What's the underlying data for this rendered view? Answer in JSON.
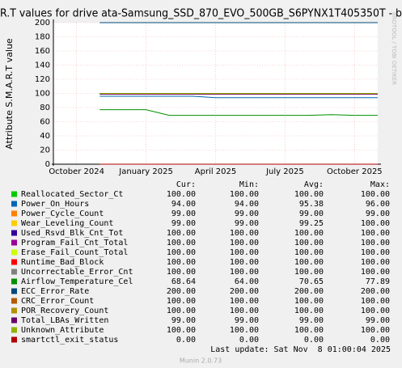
{
  "chart_data": {
    "type": "line",
    "title": "R.T values for drive ata-Samsung_SSD_870_EVO_500GB_S6PYNX1T405350T - b",
    "y_label": "Attribute S.M.A.R.T value",
    "watermark": "RRDTOOL / TOBI OETIKER",
    "x": [
      "2024-11",
      "2024-12",
      "2025-01",
      "2025-02",
      "2025-03",
      "2025-04",
      "2025-05",
      "2025-06",
      "2025-07",
      "2025-08",
      "2025-09",
      "2025-10",
      "2025-11"
    ],
    "xlim": [
      "2024-09",
      "2025-11"
    ],
    "xticks": [
      {
        "value": "2024-10",
        "label": "October 2024"
      },
      {
        "value": "2025-01",
        "label": "January 2025"
      },
      {
        "value": "2025-04",
        "label": "April 2025"
      },
      {
        "value": "2025-07",
        "label": "July 2025"
      },
      {
        "value": "2025-10",
        "label": "October 2025"
      }
    ],
    "ylim": [
      0,
      200
    ],
    "yticks": [
      0,
      20,
      40,
      60,
      80,
      100,
      120,
      140,
      160,
      180,
      200
    ],
    "grid": true,
    "series": [
      {
        "name": "Reallocated_Sector_Ct",
        "color": "#00cc00",
        "values": [
          100,
          100,
          100,
          100,
          100,
          100,
          100,
          100,
          100,
          100,
          100,
          100,
          100
        ]
      },
      {
        "name": "Power_On_Hours",
        "color": "#0066b3",
        "values": [
          96,
          96,
          96,
          96,
          96,
          94,
          94,
          94,
          94,
          94,
          94,
          94,
          94
        ]
      },
      {
        "name": "Power_Cycle_Count",
        "color": "#ff8000",
        "values": [
          99,
          99,
          99,
          99,
          99,
          99,
          99,
          99,
          99,
          99,
          99,
          99,
          99
        ]
      },
      {
        "name": "Wear_Leveling_Count",
        "color": "#ffcc00",
        "values": [
          100,
          100,
          100,
          99,
          99,
          99,
          99,
          99,
          99,
          99,
          99,
          99,
          99
        ]
      },
      {
        "name": "Used_Rsvd_Blk_Cnt_Tot",
        "color": "#330099",
        "values": [
          100,
          100,
          100,
          100,
          100,
          100,
          100,
          100,
          100,
          100,
          100,
          100,
          100
        ]
      },
      {
        "name": "Program_Fail_Cnt_Total",
        "color": "#990099",
        "values": [
          100,
          100,
          100,
          100,
          100,
          100,
          100,
          100,
          100,
          100,
          100,
          100,
          100
        ]
      },
      {
        "name": "Erase_Fail_Count_Total",
        "color": "#ccff00",
        "values": [
          100,
          100,
          100,
          100,
          100,
          100,
          100,
          100,
          100,
          100,
          100,
          100,
          100
        ]
      },
      {
        "name": "Runtime_Bad_Block",
        "color": "#ff0000",
        "values": [
          100,
          100,
          100,
          100,
          100,
          100,
          100,
          100,
          100,
          100,
          100,
          100,
          100
        ]
      },
      {
        "name": "Uncorrectable_Error_Cnt",
        "color": "#808080",
        "values": [
          100,
          100,
          100,
          100,
          100,
          100,
          100,
          100,
          100,
          100,
          100,
          100,
          100
        ]
      },
      {
        "name": "Airflow_Temperature_Cel",
        "color": "#008f00",
        "values": [
          77,
          77,
          77,
          69,
          69,
          69,
          69,
          69,
          69,
          69,
          70,
          69,
          69
        ]
      },
      {
        "name": "ECC_Error_Rate",
        "color": "#00487d",
        "values": [
          200,
          200,
          200,
          200,
          200,
          200,
          200,
          200,
          200,
          200,
          200,
          200,
          200
        ]
      },
      {
        "name": "CRC_Error_Count",
        "color": "#b35a00",
        "values": [
          100,
          100,
          100,
          100,
          100,
          100,
          100,
          100,
          100,
          100,
          100,
          100,
          100
        ]
      },
      {
        "name": "POR_Recovery_Count",
        "color": "#b38f00",
        "values": [
          100,
          100,
          100,
          100,
          100,
          100,
          100,
          100,
          100,
          100,
          100,
          100,
          100
        ]
      },
      {
        "name": "Total_LBAs_Written",
        "color": "#6b006b",
        "values": [
          99,
          99,
          99,
          99,
          99,
          99,
          99,
          99,
          99,
          99,
          99,
          99,
          99
        ]
      },
      {
        "name": "Unknown_Attribute",
        "color": "#8fb300",
        "values": [
          100,
          100,
          100,
          100,
          100,
          100,
          100,
          100,
          100,
          100,
          100,
          100,
          100
        ]
      },
      {
        "name": "smartctl_exit_status",
        "color": "#b30000",
        "values": [
          0,
          0,
          0,
          0,
          0,
          0,
          0,
          0,
          0,
          0,
          0,
          0,
          0
        ]
      }
    ],
    "legend_table": {
      "headers": [
        "Cur:",
        "Min:",
        "Avg:",
        "Max:"
      ],
      "rows": [
        [
          "100.00",
          "100.00",
          "100.00",
          "100.00"
        ],
        [
          "94.00",
          "94.00",
          "95.38",
          "96.00"
        ],
        [
          "99.00",
          "99.00",
          "99.00",
          "99.00"
        ],
        [
          "99.00",
          "99.00",
          "99.25",
          "100.00"
        ],
        [
          "100.00",
          "100.00",
          "100.00",
          "100.00"
        ],
        [
          "100.00",
          "100.00",
          "100.00",
          "100.00"
        ],
        [
          "100.00",
          "100.00",
          "100.00",
          "100.00"
        ],
        [
          "100.00",
          "100.00",
          "100.00",
          "100.00"
        ],
        [
          "100.00",
          "100.00",
          "100.00",
          "100.00"
        ],
        [
          "68.64",
          "64.00",
          "70.65",
          "77.89"
        ],
        [
          "200.00",
          "200.00",
          "200.00",
          "200.00"
        ],
        [
          "100.00",
          "100.00",
          "100.00",
          "100.00"
        ],
        [
          "100.00",
          "100.00",
          "100.00",
          "100.00"
        ],
        [
          "99.00",
          "99.00",
          "99.00",
          "99.00"
        ],
        [
          "100.00",
          "100.00",
          "100.00",
          "100.00"
        ],
        [
          "0.00",
          "0.00",
          "0.00",
          "0.00"
        ]
      ]
    },
    "last_update": "Last update: Sat Nov  8 01:00:04 2025",
    "footer": "Munin 2.0.73"
  }
}
